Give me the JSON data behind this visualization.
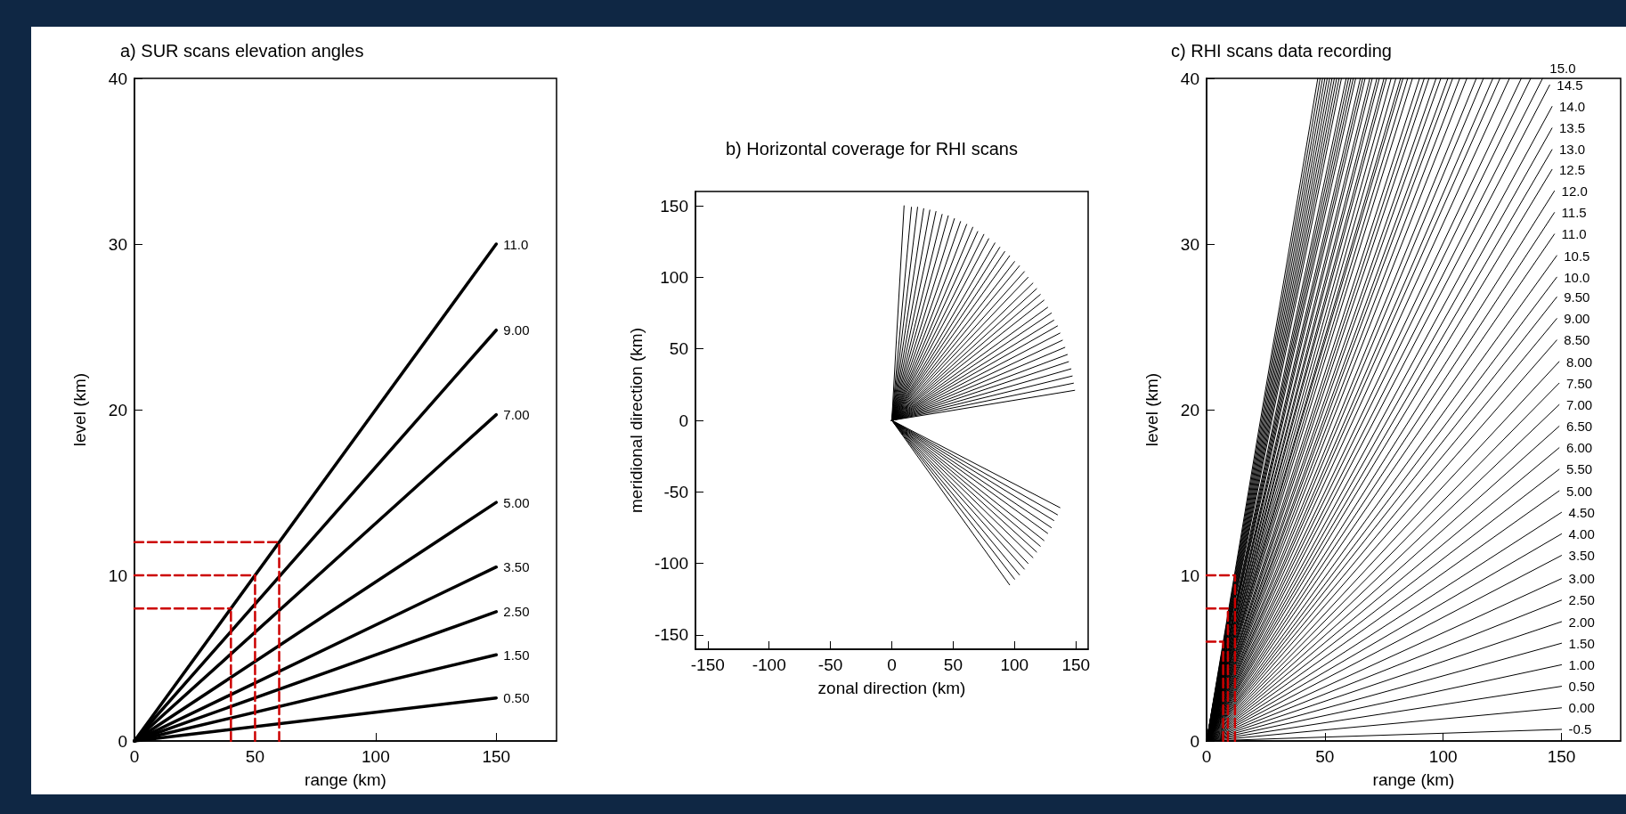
{
  "chart_data": [
    {
      "type": "line",
      "title": "a) SUR scans elevation angles",
      "xlabel": "range (km)",
      "ylabel": "level (km)",
      "xlim": [
        0,
        175
      ],
      "ylim": [
        0,
        40
      ],
      "xticks": [
        0,
        50,
        100,
        150
      ],
      "yticks": [
        0,
        10,
        20,
        30,
        40
      ],
      "marker": "none",
      "series": [
        {
          "name": "11.0",
          "color": "#000000",
          "x": [
            0,
            150
          ],
          "values": [
            0,
            30
          ]
        },
        {
          "name": "9.00",
          "color": "#000000",
          "x": [
            0,
            150
          ],
          "values": [
            0,
            24.8
          ]
        },
        {
          "name": "7.00",
          "color": "#000000",
          "x": [
            0,
            150
          ],
          "values": [
            0,
            19.7
          ]
        },
        {
          "name": "5.00",
          "color": "#000000",
          "x": [
            0,
            150
          ],
          "values": [
            0,
            14.4
          ]
        },
        {
          "name": "3.50",
          "color": "#000000",
          "x": [
            0,
            150
          ],
          "values": [
            0,
            10.5
          ]
        },
        {
          "name": "2.50",
          "color": "#000000",
          "x": [
            0,
            150
          ],
          "values": [
            0,
            7.8
          ]
        },
        {
          "name": "1.50",
          "color": "#000000",
          "x": [
            0,
            150
          ],
          "values": [
            0,
            5.2
          ]
        },
        {
          "name": "0.50",
          "color": "#000000",
          "x": [
            0,
            150
          ],
          "values": [
            0,
            2.6
          ]
        },
        {
          "color": "#cc0000",
          "line_style": "dashed",
          "x": [
            0,
            40
          ],
          "values": [
            8,
            8
          ]
        },
        {
          "color": "#cc0000",
          "line_style": "dashed",
          "x": [
            0,
            50
          ],
          "values": [
            10,
            10
          ]
        },
        {
          "color": "#cc0000",
          "line_style": "dashed",
          "x": [
            0,
            60
          ],
          "values": [
            12,
            12
          ]
        },
        {
          "color": "#cc0000",
          "line_style": "dashed",
          "x": [
            40,
            40
          ],
          "values": [
            0,
            8
          ]
        },
        {
          "color": "#cc0000",
          "line_style": "dashed",
          "x": [
            50,
            50
          ],
          "values": [
            0,
            10
          ]
        },
        {
          "color": "#cc0000",
          "line_style": "dashed",
          "x": [
            60,
            60
          ],
          "values": [
            0,
            12
          ]
        }
      ]
    },
    {
      "type": "line",
      "title": "b) Horizontal coverage for RHI scans",
      "xlabel": "zonal direction (km)",
      "ylabel": "meridional direction (km)",
      "xlim": [
        -160,
        160
      ],
      "ylim": [
        -160,
        160
      ],
      "xticks": [
        -150,
        -100,
        -50,
        0,
        50,
        100,
        150
      ],
      "yticks": [
        -150,
        -100,
        -50,
        0,
        50,
        100,
        150
      ],
      "marker": "none",
      "series": [
        {
          "color": "#000000",
          "x": [
            0,
            10
          ],
          "values": [
            0,
            150
          ]
        },
        {
          "color": "#000000",
          "x": [
            0,
            16
          ],
          "values": [
            0,
            149
          ]
        },
        {
          "color": "#000000",
          "x": [
            0,
            21
          ],
          "values": [
            0,
            149
          ]
        },
        {
          "color": "#000000",
          "x": [
            0,
            26
          ],
          "values": [
            0,
            148
          ]
        },
        {
          "color": "#000000",
          "x": [
            0,
            31
          ],
          "values": [
            0,
            147
          ]
        },
        {
          "color": "#000000",
          "x": [
            0,
            36
          ],
          "values": [
            0,
            146
          ]
        },
        {
          "color": "#000000",
          "x": [
            0,
            41
          ],
          "values": [
            0,
            144
          ]
        },
        {
          "color": "#000000",
          "x": [
            0,
            46
          ],
          "values": [
            0,
            143
          ]
        },
        {
          "color": "#000000",
          "x": [
            0,
            51
          ],
          "values": [
            0,
            141
          ]
        },
        {
          "color": "#000000",
          "x": [
            0,
            56
          ],
          "values": [
            0,
            139
          ]
        },
        {
          "color": "#000000",
          "x": [
            0,
            61
          ],
          "values": [
            0,
            137
          ]
        },
        {
          "color": "#000000",
          "x": [
            0,
            66
          ],
          "values": [
            0,
            135
          ]
        },
        {
          "color": "#000000",
          "x": [
            0,
            70
          ],
          "values": [
            0,
            132
          ]
        },
        {
          "color": "#000000",
          "x": [
            0,
            75
          ],
          "values": [
            0,
            130
          ]
        },
        {
          "color": "#000000",
          "x": [
            0,
            79
          ],
          "values": [
            0,
            127
          ]
        },
        {
          "color": "#000000",
          "x": [
            0,
            84
          ],
          "values": [
            0,
            124
          ]
        },
        {
          "color": "#000000",
          "x": [
            0,
            88
          ],
          "values": [
            0,
            121
          ]
        },
        {
          "color": "#000000",
          "x": [
            0,
            92
          ],
          "values": [
            0,
            118
          ]
        },
        {
          "color": "#000000",
          "x": [
            0,
            96
          ],
          "values": [
            0,
            115
          ]
        },
        {
          "color": "#000000",
          "x": [
            0,
            100
          ],
          "values": [
            0,
            111
          ]
        },
        {
          "color": "#000000",
          "x": [
            0,
            104
          ],
          "values": [
            0,
            108
          ]
        },
        {
          "color": "#000000",
          "x": [
            0,
            108
          ],
          "values": [
            0,
            104
          ]
        },
        {
          "color": "#000000",
          "x": [
            0,
            111
          ],
          "values": [
            0,
            100
          ]
        },
        {
          "color": "#000000",
          "x": [
            0,
            115
          ],
          "values": [
            0,
            96
          ]
        },
        {
          "color": "#000000",
          "x": [
            0,
            118
          ],
          "values": [
            0,
            92
          ]
        },
        {
          "color": "#000000",
          "x": [
            0,
            121
          ],
          "values": [
            0,
            88
          ]
        },
        {
          "color": "#000000",
          "x": [
            0,
            124
          ],
          "values": [
            0,
            84
          ]
        },
        {
          "color": "#000000",
          "x": [
            0,
            127
          ],
          "values": [
            0,
            79
          ]
        },
        {
          "color": "#000000",
          "x": [
            0,
            130
          ],
          "values": [
            0,
            75
          ]
        },
        {
          "color": "#000000",
          "x": [
            0,
            132
          ],
          "values": [
            0,
            70
          ]
        },
        {
          "color": "#000000",
          "x": [
            0,
            135
          ],
          "values": [
            0,
            66
          ]
        },
        {
          "color": "#000000",
          "x": [
            0,
            137
          ],
          "values": [
            0,
            61
          ]
        },
        {
          "color": "#000000",
          "x": [
            0,
            139
          ],
          "values": [
            0,
            56
          ]
        },
        {
          "color": "#000000",
          "x": [
            0,
            141
          ],
          "values": [
            0,
            51
          ]
        },
        {
          "color": "#000000",
          "x": [
            0,
            143
          ],
          "values": [
            0,
            46
          ]
        },
        {
          "color": "#000000",
          "x": [
            0,
            144
          ],
          "values": [
            0,
            41
          ]
        },
        {
          "color": "#000000",
          "x": [
            0,
            146
          ],
          "values": [
            0,
            36
          ]
        },
        {
          "color": "#000000",
          "x": [
            0,
            147
          ],
          "values": [
            0,
            31
          ]
        },
        {
          "color": "#000000",
          "x": [
            0,
            148
          ],
          "values": [
            0,
            26
          ]
        },
        {
          "color": "#000000",
          "x": [
            0,
            149
          ],
          "values": [
            0,
            21
          ]
        },
        {
          "color": "#000000",
          "x": [
            0,
            137
          ],
          "values": [
            0,
            -61
          ]
        },
        {
          "color": "#000000",
          "x": [
            0,
            135
          ],
          "values": [
            0,
            -66
          ]
        },
        {
          "color": "#000000",
          "x": [
            0,
            132
          ],
          "values": [
            0,
            -70
          ]
        },
        {
          "color": "#000000",
          "x": [
            0,
            130
          ],
          "values": [
            0,
            -75
          ]
        },
        {
          "color": "#000000",
          "x": [
            0,
            127
          ],
          "values": [
            0,
            -79
          ]
        },
        {
          "color": "#000000",
          "x": [
            0,
            124
          ],
          "values": [
            0,
            -84
          ]
        },
        {
          "color": "#000000",
          "x": [
            0,
            121
          ],
          "values": [
            0,
            -88
          ]
        },
        {
          "color": "#000000",
          "x": [
            0,
            118
          ],
          "values": [
            0,
            -92
          ]
        },
        {
          "color": "#000000",
          "x": [
            0,
            115
          ],
          "values": [
            0,
            -96
          ]
        },
        {
          "color": "#000000",
          "x": [
            0,
            111
          ],
          "values": [
            0,
            -100
          ]
        },
        {
          "color": "#000000",
          "x": [
            0,
            108
          ],
          "values": [
            0,
            -104
          ]
        },
        {
          "color": "#000000",
          "x": [
            0,
            104
          ],
          "values": [
            0,
            -108
          ]
        },
        {
          "color": "#000000",
          "x": [
            0,
            100
          ],
          "values": [
            0,
            -111
          ]
        },
        {
          "color": "#000000",
          "x": [
            0,
            96
          ],
          "values": [
            0,
            -115
          ]
        }
      ]
    },
    {
      "type": "line",
      "title": "c) RHI scans data recording",
      "xlabel": "range (km)",
      "ylabel": "level (km)",
      "xlim": [
        0,
        175
      ],
      "ylim": [
        0,
        40
      ],
      "xticks": [
        0,
        50,
        100,
        150
      ],
      "yticks": [
        0,
        10,
        20,
        30,
        40
      ],
      "marker": "none",
      "series": [
        {
          "name": "15.0",
          "color": "#000000",
          "x": [
            0,
            142
          ],
          "values": [
            0,
            40
          ]
        },
        {
          "name": "14.5",
          "color": "#000000",
          "x": [
            0,
            145
          ],
          "values": [
            0,
            39.6
          ]
        },
        {
          "name": "14.0",
          "color": "#000000",
          "x": [
            0,
            146
          ],
          "values": [
            0,
            38.3
          ]
        },
        {
          "name": "13.5",
          "color": "#000000",
          "x": [
            0,
            146
          ],
          "values": [
            0,
            37
          ]
        },
        {
          "name": "13.0",
          "color": "#000000",
          "x": [
            0,
            146
          ],
          "values": [
            0,
            35.7
          ]
        },
        {
          "name": "12.5",
          "color": "#000000",
          "x": [
            0,
            146
          ],
          "values": [
            0,
            34.5
          ]
        },
        {
          "name": "12.0",
          "color": "#000000",
          "x": [
            0,
            147
          ],
          "values": [
            0,
            33.2
          ]
        },
        {
          "name": "11.5",
          "color": "#000000",
          "x": [
            0,
            147
          ],
          "values": [
            0,
            31.9
          ]
        },
        {
          "name": "11.0",
          "color": "#000000",
          "x": [
            0,
            147
          ],
          "values": [
            0,
            30.6
          ]
        },
        {
          "name": "10.5",
          "color": "#000000",
          "x": [
            0,
            148
          ],
          "values": [
            0,
            29.3
          ]
        },
        {
          "name": "10.0",
          "color": "#000000",
          "x": [
            0,
            148
          ],
          "values": [
            0,
            28
          ]
        },
        {
          "name": "9.50",
          "color": "#000000",
          "x": [
            0,
            148
          ],
          "values": [
            0,
            26.8
          ]
        },
        {
          "name": "9.00",
          "color": "#000000",
          "x": [
            0,
            148
          ],
          "values": [
            0,
            25.5
          ]
        },
        {
          "name": "8.50",
          "color": "#000000",
          "x": [
            0,
            148
          ],
          "values": [
            0,
            24.2
          ]
        },
        {
          "name": "8.00",
          "color": "#000000",
          "x": [
            0,
            149
          ],
          "values": [
            0,
            22.9
          ]
        },
        {
          "name": "7.50",
          "color": "#000000",
          "x": [
            0,
            149
          ],
          "values": [
            0,
            21.6
          ]
        },
        {
          "name": "7.00",
          "color": "#000000",
          "x": [
            0,
            149
          ],
          "values": [
            0,
            20.3
          ]
        },
        {
          "name": "6.50",
          "color": "#000000",
          "x": [
            0,
            149
          ],
          "values": [
            0,
            19
          ]
        },
        {
          "name": "6.00",
          "color": "#000000",
          "x": [
            0,
            149
          ],
          "values": [
            0,
            17.7
          ]
        },
        {
          "name": "5.50",
          "color": "#000000",
          "x": [
            0,
            149
          ],
          "values": [
            0,
            16.4
          ]
        },
        {
          "name": "5.00",
          "color": "#000000",
          "x": [
            0,
            149
          ],
          "values": [
            0,
            15.1
          ]
        },
        {
          "name": "4.50",
          "color": "#000000",
          "x": [
            0,
            150
          ],
          "values": [
            0,
            13.8
          ]
        },
        {
          "name": "4.00",
          "color": "#000000",
          "x": [
            0,
            150
          ],
          "values": [
            0,
            12.5
          ]
        },
        {
          "name": "3.50",
          "color": "#000000",
          "x": [
            0,
            150
          ],
          "values": [
            0,
            11.2
          ]
        },
        {
          "name": "3.00",
          "color": "#000000",
          "x": [
            0,
            150
          ],
          "values": [
            0,
            9.8
          ]
        },
        {
          "name": "2.50",
          "color": "#000000",
          "x": [
            0,
            150
          ],
          "values": [
            0,
            8.5
          ]
        },
        {
          "name": "2.00",
          "color": "#000000",
          "x": [
            0,
            150
          ],
          "values": [
            0,
            7.2
          ]
        },
        {
          "name": "1.50",
          "color": "#000000",
          "x": [
            0,
            150
          ],
          "values": [
            0,
            5.9
          ]
        },
        {
          "name": "1.00",
          "color": "#000000",
          "x": [
            0,
            150
          ],
          "values": [
            0,
            4.6
          ]
        },
        {
          "name": "0.50",
          "color": "#000000",
          "x": [
            0,
            150
          ],
          "values": [
            0,
            3.3
          ]
        },
        {
          "name": "0.00",
          "color": "#000000",
          "x": [
            0,
            150
          ],
          "values": [
            0,
            2
          ]
        },
        {
          "name": "-0.5",
          "color": "#000000",
          "x": [
            0,
            150
          ],
          "values": [
            0,
            0.7
          ]
        },
        {
          "color": "#000000",
          "x": [
            0,
            137
          ],
          "values": [
            0,
            40
          ]
        },
        {
          "color": "#000000",
          "x": [
            0,
            133
          ],
          "values": [
            0,
            40
          ]
        },
        {
          "color": "#000000",
          "x": [
            0,
            128
          ],
          "values": [
            0,
            40
          ]
        },
        {
          "color": "#000000",
          "x": [
            0,
            124
          ],
          "values": [
            0,
            40
          ]
        },
        {
          "color": "#000000",
          "x": [
            0,
            121
          ],
          "values": [
            0,
            40
          ]
        },
        {
          "color": "#000000",
          "x": [
            0,
            117
          ],
          "values": [
            0,
            40
          ]
        },
        {
          "color": "#000000",
          "x": [
            0,
            114
          ],
          "values": [
            0,
            40
          ]
        },
        {
          "color": "#000000",
          "x": [
            0,
            110
          ],
          "values": [
            0,
            40
          ]
        },
        {
          "color": "#000000",
          "x": [
            0,
            107
          ],
          "values": [
            0,
            40
          ]
        },
        {
          "color": "#000000",
          "x": [
            0,
            104
          ],
          "values": [
            0,
            40
          ]
        },
        {
          "color": "#000000",
          "x": [
            0,
            102
          ],
          "values": [
            0,
            40
          ]
        },
        {
          "color": "#000000",
          "x": [
            0,
            99
          ],
          "values": [
            0,
            40
          ]
        },
        {
          "color": "#000000",
          "x": [
            0,
            97
          ],
          "values": [
            0,
            40
          ]
        },
        {
          "color": "#000000",
          "x": [
            0,
            94
          ],
          "values": [
            0,
            40
          ]
        },
        {
          "color": "#000000",
          "x": [
            0,
            92
          ],
          "values": [
            0,
            40
          ]
        },
        {
          "color": "#000000",
          "x": [
            0,
            90
          ],
          "values": [
            0,
            40
          ]
        },
        {
          "color": "#000000",
          "x": [
            0,
            87
          ],
          "values": [
            0,
            40
          ]
        },
        {
          "color": "#000000",
          "x": [
            0,
            85
          ],
          "values": [
            0,
            40
          ]
        },
        {
          "color": "#000000",
          "x": [
            0,
            83
          ],
          "values": [
            0,
            40
          ]
        },
        {
          "color": "#000000",
          "x": [
            0,
            82
          ],
          "values": [
            0,
            40
          ]
        },
        {
          "color": "#000000",
          "x": [
            0,
            80
          ],
          "values": [
            0,
            40
          ]
        },
        {
          "color": "#000000",
          "x": [
            0,
            78
          ],
          "values": [
            0,
            40
          ]
        },
        {
          "color": "#000000",
          "x": [
            0,
            76
          ],
          "values": [
            0,
            40
          ]
        },
        {
          "color": "#000000",
          "x": [
            0,
            75
          ],
          "values": [
            0,
            40
          ]
        },
        {
          "color": "#000000",
          "x": [
            0,
            73
          ],
          "values": [
            0,
            40
          ]
        },
        {
          "color": "#000000",
          "x": [
            0,
            72
          ],
          "values": [
            0,
            40
          ]
        },
        {
          "color": "#000000",
          "x": [
            0,
            70
          ],
          "values": [
            0,
            40
          ]
        },
        {
          "color": "#000000",
          "x": [
            0,
            69
          ],
          "values": [
            0,
            40
          ]
        },
        {
          "color": "#000000",
          "x": [
            0,
            67
          ],
          "values": [
            0,
            40
          ]
        },
        {
          "color": "#000000",
          "x": [
            0,
            66
          ],
          "values": [
            0,
            40
          ]
        },
        {
          "color": "#000000",
          "x": [
            0,
            65
          ],
          "values": [
            0,
            40
          ]
        },
        {
          "color": "#000000",
          "x": [
            0,
            63
          ],
          "values": [
            0,
            40
          ]
        },
        {
          "color": "#000000",
          "x": [
            0,
            62
          ],
          "values": [
            0,
            40
          ]
        },
        {
          "color": "#000000",
          "x": [
            0,
            61
          ],
          "values": [
            0,
            40
          ]
        },
        {
          "color": "#000000",
          "x": [
            0,
            60
          ],
          "values": [
            0,
            40
          ]
        },
        {
          "color": "#000000",
          "x": [
            0,
            59
          ],
          "values": [
            0,
            40
          ]
        },
        {
          "color": "#000000",
          "x": [
            0,
            57
          ],
          "values": [
            0,
            40
          ]
        },
        {
          "color": "#000000",
          "x": [
            0,
            56
          ],
          "values": [
            0,
            40
          ]
        },
        {
          "color": "#000000",
          "x": [
            0,
            55
          ],
          "values": [
            0,
            40
          ]
        },
        {
          "color": "#000000",
          "x": [
            0,
            54
          ],
          "values": [
            0,
            40
          ]
        },
        {
          "color": "#000000",
          "x": [
            0,
            53
          ],
          "values": [
            0,
            40
          ]
        },
        {
          "color": "#000000",
          "x": [
            0,
            52
          ],
          "values": [
            0,
            40
          ]
        },
        {
          "color": "#000000",
          "x": [
            0,
            51
          ],
          "values": [
            0,
            40
          ]
        },
        {
          "color": "#000000",
          "x": [
            0,
            50
          ],
          "values": [
            0,
            40
          ]
        },
        {
          "color": "#000000",
          "x": [
            0,
            49
          ],
          "values": [
            0,
            40
          ]
        },
        {
          "color": "#000000",
          "x": [
            0,
            48
          ],
          "values": [
            0,
            40
          ]
        },
        {
          "color": "#000000",
          "x": [
            0,
            47
          ],
          "values": [
            0,
            40
          ]
        },
        {
          "color": "#cc0000",
          "line_style": "dashed",
          "x": [
            0,
            12
          ],
          "values": [
            10,
            10
          ]
        },
        {
          "color": "#cc0000",
          "line_style": "dashed",
          "x": [
            0,
            9
          ],
          "values": [
            8,
            8
          ]
        },
        {
          "color": "#cc0000",
          "line_style": "dashed",
          "x": [
            0,
            7
          ],
          "values": [
            6,
            6
          ]
        },
        {
          "color": "#cc0000",
          "line_style": "dashed",
          "x": [
            7,
            7
          ],
          "values": [
            0,
            6
          ]
        },
        {
          "color": "#cc0000",
          "line_style": "dashed",
          "x": [
            9,
            9
          ],
          "values": [
            0,
            8
          ]
        },
        {
          "color": "#cc0000",
          "line_style": "dashed",
          "x": [
            12,
            12
          ],
          "values": [
            0,
            10
          ]
        }
      ]
    }
  ]
}
